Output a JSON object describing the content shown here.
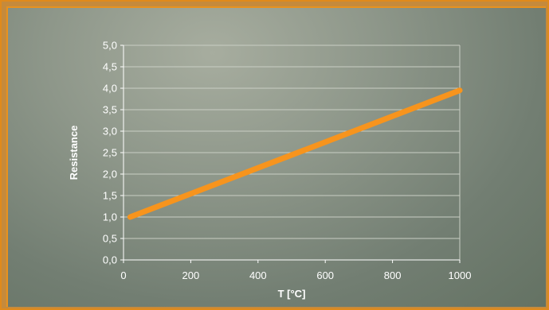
{
  "chart_data": {
    "type": "line",
    "title": "",
    "xlabel": "T [°C]",
    "ylabel": "Resistance",
    "xlim": [
      0,
      1000
    ],
    "ylim": [
      0,
      5
    ],
    "x_ticks": [
      0,
      200,
      400,
      600,
      800,
      1000
    ],
    "x_tick_labels": [
      "0",
      "200",
      "400",
      "600",
      "800",
      "1000"
    ],
    "y_ticks": [
      0,
      0.5,
      1,
      1.5,
      2,
      2.5,
      3,
      3.5,
      4,
      4.5,
      5
    ],
    "y_tick_labels": [
      "0,0",
      "0,5",
      "1,0",
      "1,5",
      "2,0",
      "2,5",
      "3,0",
      "3,5",
      "4,0",
      "4,5",
      "5,0"
    ],
    "grid": true,
    "series": [
      {
        "x": [
          20,
          1000
        ],
        "y": [
          1.0,
          3.95
        ],
        "color": "#f7941d"
      }
    ]
  },
  "colors": {
    "line": "#f7941d",
    "grid": "#c9cec4",
    "axis": "#ffffff"
  }
}
